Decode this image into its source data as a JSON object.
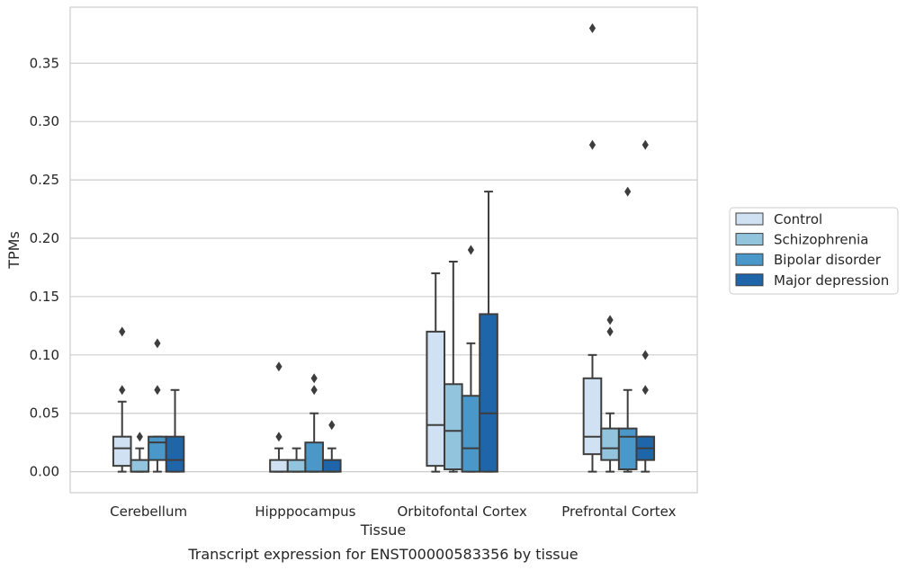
{
  "chart_data": {
    "type": "boxplot",
    "caption": "Transcript expression for ENST00000583356 by tissue",
    "xlabel": "Tissue",
    "ylabel": "TPMs",
    "ylim": [
      -0.018,
      0.398
    ],
    "yticks": [
      0.0,
      0.05,
      0.1,
      0.15,
      0.2,
      0.25,
      0.3,
      0.35
    ],
    "ytick_labels": [
      "0.00",
      "0.05",
      "0.10",
      "0.15",
      "0.20",
      "0.25",
      "0.30",
      "0.35"
    ],
    "grid": "horizontal",
    "legend_position": "right",
    "categories": [
      "Cerebellum",
      "Hipppocampus",
      "Orbitofontal Cortex",
      "Prefrontal Cortex"
    ],
    "series": [
      {
        "name": "Control",
        "color": "#cfe1f2",
        "boxes": [
          {
            "whislo": 0.0,
            "q1": 0.005,
            "med": 0.02,
            "q3": 0.03,
            "whishi": 0.06,
            "fliers": [
              0.07,
              0.12
            ]
          },
          {
            "whislo": 0.0,
            "q1": 0.0,
            "med": 0.0,
            "q3": 0.01,
            "whishi": 0.02,
            "fliers": [
              0.03,
              0.09
            ]
          },
          {
            "whislo": 0.0,
            "q1": 0.005,
            "med": 0.04,
            "q3": 0.12,
            "whishi": 0.17,
            "fliers": []
          },
          {
            "whislo": 0.0,
            "q1": 0.015,
            "med": 0.03,
            "q3": 0.08,
            "whishi": 0.1,
            "fliers": [
              0.28,
              0.38
            ]
          }
        ]
      },
      {
        "name": "Schizophrenia",
        "color": "#93c4de",
        "boxes": [
          {
            "whislo": 0.0,
            "q1": 0.0,
            "med": 0.0,
            "q3": 0.01,
            "whishi": 0.02,
            "fliers": [
              0.03
            ]
          },
          {
            "whislo": 0.0,
            "q1": 0.0,
            "med": 0.0,
            "q3": 0.01,
            "whishi": 0.02,
            "fliers": []
          },
          {
            "whislo": 0.0,
            "q1": 0.002,
            "med": 0.035,
            "q3": 0.075,
            "whishi": 0.18,
            "fliers": []
          },
          {
            "whislo": 0.0,
            "q1": 0.01,
            "med": 0.02,
            "q3": 0.037,
            "whishi": 0.05,
            "fliers": [
              0.12,
              0.13
            ]
          }
        ]
      },
      {
        "name": "Bipolar disorder",
        "color": "#4a98c9",
        "boxes": [
          {
            "whislo": 0.0,
            "q1": 0.01,
            "med": 0.025,
            "q3": 0.03,
            "whishi": 0.03,
            "fliers": [
              0.07,
              0.11
            ]
          },
          {
            "whislo": 0.0,
            "q1": 0.0,
            "med": 0.0,
            "q3": 0.025,
            "whishi": 0.05,
            "fliers": [
              0.07,
              0.08
            ]
          },
          {
            "whislo": 0.0,
            "q1": 0.0,
            "med": 0.02,
            "q3": 0.065,
            "whishi": 0.11,
            "fliers": [
              0.19
            ]
          },
          {
            "whislo": 0.0,
            "q1": 0.002,
            "med": 0.03,
            "q3": 0.037,
            "whishi": 0.07,
            "fliers": [
              0.24
            ]
          }
        ]
      },
      {
        "name": "Major depression",
        "color": "#1f65aa",
        "boxes": [
          {
            "whislo": 0.0,
            "q1": 0.0,
            "med": 0.01,
            "q3": 0.03,
            "whishi": 0.07,
            "fliers": []
          },
          {
            "whislo": 0.0,
            "q1": 0.0,
            "med": 0.0,
            "q3": 0.01,
            "whishi": 0.02,
            "fliers": [
              0.04
            ]
          },
          {
            "whislo": 0.0,
            "q1": 0.0,
            "med": 0.05,
            "q3": 0.135,
            "whishi": 0.24,
            "fliers": []
          },
          {
            "whislo": 0.0,
            "q1": 0.01,
            "med": 0.02,
            "q3": 0.03,
            "whishi": 0.03,
            "fliers": [
              0.07,
              0.1,
              0.28
            ]
          }
        ]
      }
    ]
  }
}
